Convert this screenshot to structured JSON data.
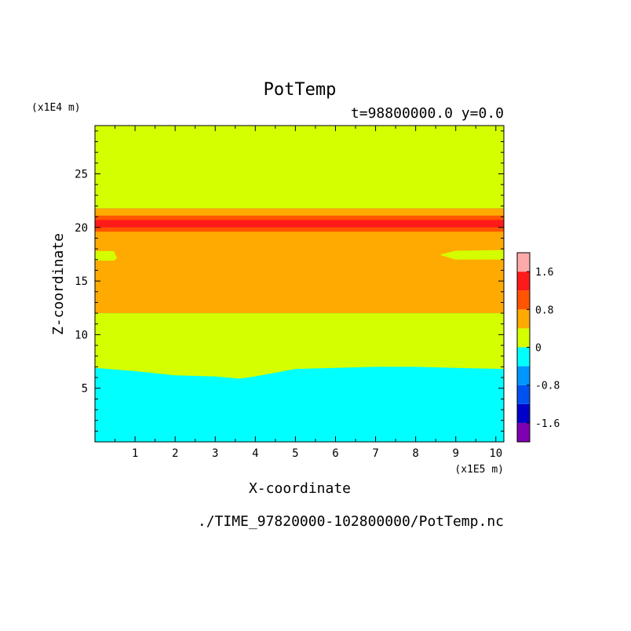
{
  "chart_data": {
    "type": "heatmap",
    "title": "PotTemp",
    "subtitle": "t=98800000.0 y=0.0",
    "xlabel": "X-coordinate",
    "ylabel": "Z-coordinate",
    "x_unit": "(x1E5 m)",
    "y_unit": "(x1E4 m)",
    "xlim": [
      0,
      10.2
    ],
    "ylim": [
      0,
      29.5
    ],
    "x_ticks": [
      "1",
      "2",
      "3",
      "4",
      "5",
      "6",
      "7",
      "8",
      "9",
      "10"
    ],
    "y_ticks": [
      "5",
      "10",
      "15",
      "20",
      "25"
    ],
    "colorbar": {
      "levels": [
        -2.0,
        -1.6,
        -1.2,
        -0.8,
        -0.4,
        0.0,
        0.4,
        0.8,
        1.2,
        1.6,
        2.0
      ],
      "colors": [
        "#7f00b2",
        "#0000c8",
        "#0052f0",
        "#0096ff",
        "#00ffff",
        "#d4ff00",
        "#ffaa00",
        "#ff5500",
        "#ff1a1a",
        "#ffaaaa"
      ],
      "tick_labels": [
        "1.6",
        "0.8",
        "0",
        "-0.8",
        "-1.6"
      ],
      "tick_values": [
        1.6,
        0.8,
        0.0,
        -0.8,
        -1.6
      ]
    },
    "contour_bands": [
      {
        "range": [
          -0.4,
          0.0
        ],
        "color": "#00ffff",
        "upper_boundary_x": [
          0,
          1,
          2,
          3,
          3.6,
          4,
          5,
          6,
          7,
          8,
          9,
          10.2
        ],
        "upper_boundary_z": [
          6.9,
          6.6,
          6.2,
          6.1,
          5.9,
          6.1,
          6.8,
          6.9,
          7.0,
          7.0,
          6.9,
          6.8
        ]
      },
      {
        "range": [
          0.0,
          0.4
        ],
        "color": "#d4ff00",
        "z_range": [
          6.8,
          12.0
        ]
      },
      {
        "range": [
          0.4,
          0.8
        ],
        "color": "#ffaa00",
        "z_range": [
          12.0,
          21.8
        ]
      },
      {
        "range": [
          0.8,
          1.2
        ],
        "color": "#ff5500",
        "z_range": [
          19.6,
          21.1
        ]
      },
      {
        "range": [
          1.2,
          1.6
        ],
        "color": "#ff1a1a",
        "z_range": [
          20.0,
          20.7
        ]
      },
      {
        "range": [
          0.0,
          0.4
        ],
        "color": "#d4ff00",
        "z_range": [
          21.8,
          29.5
        ]
      }
    ],
    "intrusions": [
      {
        "color": "#d4ff00",
        "x_range": [
          0,
          0.55
        ],
        "z_range": [
          16.9,
          17.8
        ]
      },
      {
        "color": "#d4ff00",
        "x_range": [
          8.6,
          10.2
        ],
        "z_range": [
          17.0,
          17.9
        ]
      }
    ]
  },
  "footer": {
    "filename": "./TIME_97820000-102800000/PotTemp.nc"
  }
}
